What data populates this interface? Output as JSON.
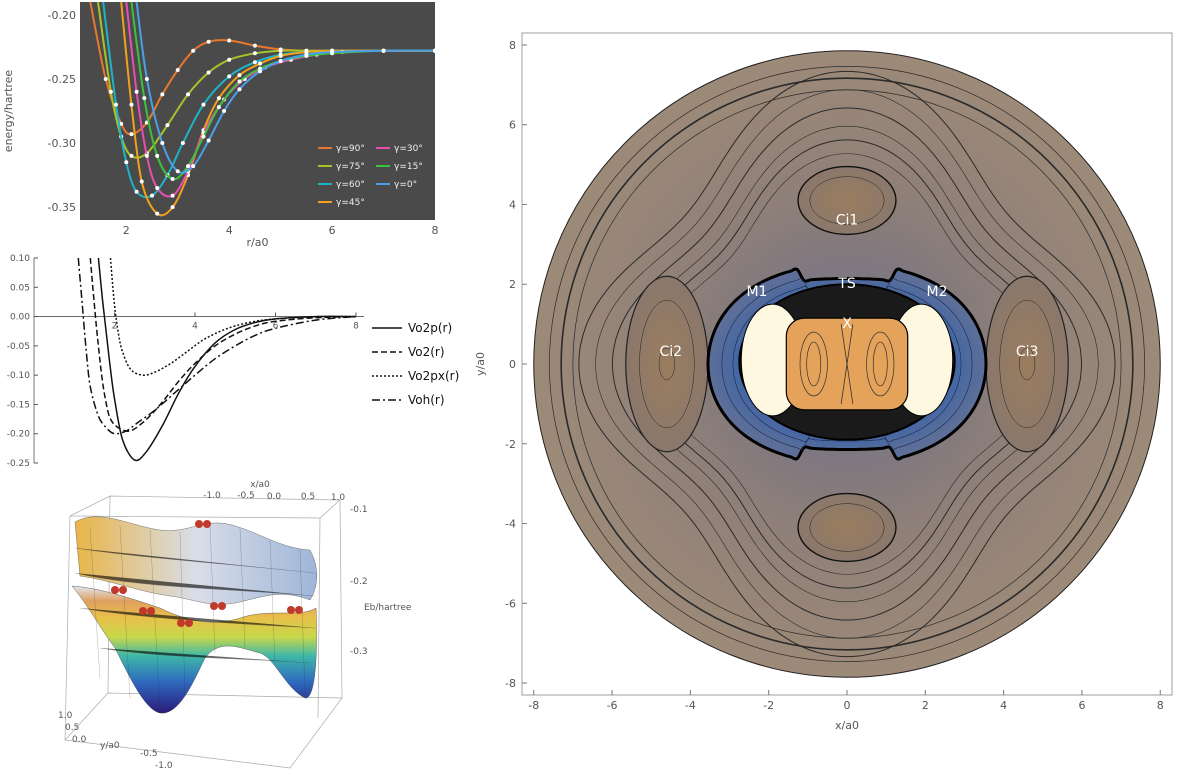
{
  "chart_data": [
    {
      "type": "line",
      "xlabel": "r/a0",
      "ylabel": "energy/hartree",
      "xlim": [
        1.1,
        8
      ],
      "ylim": [
        -0.36,
        -0.19
      ],
      "xticks": [
        "2",
        "4",
        "6",
        "8"
      ],
      "yticks": [
        "-0.20",
        "-0.25",
        "-0.30",
        "-0.35"
      ],
      "background": "#4a4a4a",
      "legend_position": "bottom-right",
      "series": [
        {
          "name": "γ=90°",
          "color": "#e8772e",
          "x": [
            1.3,
            1.6,
            1.9,
            2.1,
            2.4,
            2.7,
            3.0,
            3.3,
            3.6,
            4.0,
            4.5,
            5.0,
            5.5,
            6.0,
            7.0,
            8.0
          ],
          "y": [
            -0.19,
            -0.25,
            -0.285,
            -0.293,
            -0.284,
            -0.262,
            -0.243,
            -0.228,
            -0.221,
            -0.22,
            -0.224,
            -0.227,
            -0.228,
            -0.228,
            -0.228,
            -0.228
          ]
        },
        {
          "name": "γ=75°",
          "color": "#a6c42a",
          "x": [
            1.45,
            1.7,
            1.9,
            2.1,
            2.4,
            2.8,
            3.2,
            3.6,
            4.0,
            4.5,
            5.0,
            5.5,
            6.0,
            7.0,
            8.0
          ],
          "y": [
            -0.19,
            -0.26,
            -0.295,
            -0.31,
            -0.308,
            -0.286,
            -0.262,
            -0.245,
            -0.235,
            -0.23,
            -0.228,
            -0.228,
            -0.228,
            -0.228,
            -0.228
          ]
        },
        {
          "name": "γ=60°",
          "color": "#1fb3c8",
          "x": [
            1.55,
            1.8,
            2.0,
            2.2,
            2.5,
            2.8,
            3.1,
            3.5,
            4.0,
            4.5,
            5.0,
            5.5,
            6.0,
            7.0,
            8.0
          ],
          "y": [
            -0.19,
            -0.27,
            -0.315,
            -0.338,
            -0.341,
            -0.325,
            -0.3,
            -0.27,
            -0.248,
            -0.237,
            -0.231,
            -0.229,
            -0.228,
            -0.228,
            -0.228
          ]
        },
        {
          "name": "γ=45°",
          "color": "#f2a01e",
          "x": [
            1.9,
            2.1,
            2.3,
            2.6,
            2.9,
            3.2,
            3.5,
            3.8,
            4.2,
            4.6,
            5.0,
            5.5,
            6.0,
            7.0,
            8.0
          ],
          "y": [
            -0.19,
            -0.27,
            -0.33,
            -0.355,
            -0.35,
            -0.325,
            -0.29,
            -0.265,
            -0.247,
            -0.238,
            -0.232,
            -0.229,
            -0.228,
            -0.228,
            -0.228
          ]
        },
        {
          "name": "γ=30°",
          "color": "#e64fb0",
          "x": [
            2.0,
            2.2,
            2.4,
            2.6,
            2.9,
            3.2,
            3.5,
            3.9,
            4.3,
            4.7,
            5.2,
            5.7,
            6.2,
            7.0,
            8.0
          ],
          "y": [
            -0.19,
            -0.26,
            -0.31,
            -0.335,
            -0.341,
            -0.322,
            -0.292,
            -0.266,
            -0.25,
            -0.241,
            -0.235,
            -0.231,
            -0.229,
            -0.228,
            -0.228
          ]
        },
        {
          "name": "γ=15°",
          "color": "#3fbf3f",
          "x": [
            2.1,
            2.35,
            2.6,
            2.9,
            3.2,
            3.5,
            3.8,
            4.2,
            4.6,
            5.0,
            5.5,
            6.0,
            7.0,
            8.0
          ],
          "y": [
            -0.19,
            -0.265,
            -0.31,
            -0.328,
            -0.318,
            -0.295,
            -0.272,
            -0.252,
            -0.242,
            -0.236,
            -0.232,
            -0.23,
            -0.228,
            -0.228
          ]
        },
        {
          "name": "γ=0°",
          "color": "#4aa0e8",
          "x": [
            2.2,
            2.4,
            2.7,
            3.0,
            3.3,
            3.6,
            3.9,
            4.2,
            4.6,
            5.0,
            5.5,
            6.0,
            7.0,
            8.0
          ],
          "y": [
            -0.19,
            -0.25,
            -0.3,
            -0.322,
            -0.318,
            -0.298,
            -0.275,
            -0.258,
            -0.244,
            -0.236,
            -0.231,
            -0.229,
            -0.228,
            -0.228
          ]
        }
      ]
    },
    {
      "type": "line",
      "xlim": [
        0,
        8.2
      ],
      "ylim": [
        -0.25,
        0.1
      ],
      "xticks": [
        "2",
        "4",
        "6",
        "8"
      ],
      "yticks": [
        "0.10",
        "0.05",
        "0.00",
        "-0.05",
        "-0.10",
        "-0.15",
        "-0.20",
        "-0.25"
      ],
      "legend_position": "right",
      "series": [
        {
          "name": "Vo2p(r)",
          "dash": "none",
          "x": [
            1.6,
            1.7,
            1.8,
            1.9,
            2.0,
            2.2,
            2.5,
            2.8,
            3.2,
            3.6,
            4.0,
            4.5,
            5.0,
            5.5,
            6.0,
            7.0,
            8.0
          ],
          "y": [
            0.1,
            0.03,
            -0.03,
            -0.09,
            -0.14,
            -0.21,
            -0.245,
            -0.23,
            -0.185,
            -0.13,
            -0.085,
            -0.045,
            -0.022,
            -0.01,
            -0.004,
            0,
            0
          ]
        },
        {
          "name": "Vo2(r)",
          "dash": "6,3",
          "x": [
            1.4,
            1.5,
            1.6,
            1.7,
            1.8,
            1.9,
            2.1,
            2.4,
            2.8,
            3.2,
            3.6,
            4.0,
            4.5,
            5.0,
            5.5,
            6.0,
            7.0,
            8.0
          ],
          "y": [
            0.1,
            0.02,
            -0.05,
            -0.11,
            -0.15,
            -0.175,
            -0.19,
            -0.195,
            -0.175,
            -0.145,
            -0.11,
            -0.08,
            -0.05,
            -0.03,
            -0.016,
            -0.008,
            -0.002,
            0
          ]
        },
        {
          "name": "Vo2px(r)",
          "dash": "2,2",
          "x": [
            1.9,
            2.0,
            2.1,
            2.2,
            2.4,
            2.7,
            3.0,
            3.4,
            3.8,
            4.2,
            4.6,
            5.0,
            5.5,
            6.0,
            7.0,
            8.0
          ],
          "y": [
            0.1,
            0.02,
            -0.03,
            -0.06,
            -0.09,
            -0.1,
            -0.095,
            -0.08,
            -0.06,
            -0.04,
            -0.026,
            -0.016,
            -0.008,
            -0.004,
            0,
            0
          ]
        },
        {
          "name": "Voh(r)",
          "dash": "8,3,2,3",
          "x": [
            1.1,
            1.2,
            1.3,
            1.4,
            1.6,
            1.8,
            2.0,
            2.3,
            2.6,
            3.0,
            3.5,
            4.0,
            4.5,
            5.0,
            5.5,
            6.0,
            7.0,
            8.0
          ],
          "y": [
            0.1,
            0.02,
            -0.06,
            -0.12,
            -0.17,
            -0.19,
            -0.2,
            -0.195,
            -0.18,
            -0.16,
            -0.13,
            -0.1,
            -0.072,
            -0.05,
            -0.032,
            -0.02,
            -0.006,
            0
          ]
        }
      ]
    },
    {
      "type": "surface3d",
      "xlabel": "x/a0",
      "ylabel": "y/a0",
      "zlabel": "Eb/hartree",
      "xticks": [
        "-1.0",
        "-0.5",
        "0.0",
        "0.5",
        "1.0"
      ],
      "yticks": [
        "1.0",
        "0.5",
        "0.0",
        "-0.5",
        "-1.0"
      ],
      "zticks": [
        "-0.1",
        "-0.2",
        "-0.3"
      ]
    },
    {
      "type": "heatmap",
      "xlabel": "x/a0",
      "ylabel": "y/a0",
      "xlim": [
        -8.3,
        8.3
      ],
      "ylim": [
        -8.3,
        8.3
      ],
      "xticks": [
        "-8",
        "-6",
        "-4",
        "-2",
        "0",
        "2",
        "4",
        "6",
        "8"
      ],
      "yticks": [
        "8",
        "6",
        "4",
        "2",
        "0",
        "-2",
        "-4",
        "-6",
        "-8"
      ],
      "labels": [
        {
          "text": "Ci1",
          "x": 0,
          "y": 3.5
        },
        {
          "text": "TS",
          "x": 0,
          "y": 1.9
        },
        {
          "text": "M1",
          "x": -2.3,
          "y": 1.7
        },
        {
          "text": "M2",
          "x": 2.3,
          "y": 1.7
        },
        {
          "text": "X",
          "x": 0,
          "y": 0.9
        },
        {
          "text": "Ci2",
          "x": -4.5,
          "y": 0.2
        },
        {
          "text": "Ci3",
          "x": 4.6,
          "y": 0.2
        }
      ]
    }
  ]
}
